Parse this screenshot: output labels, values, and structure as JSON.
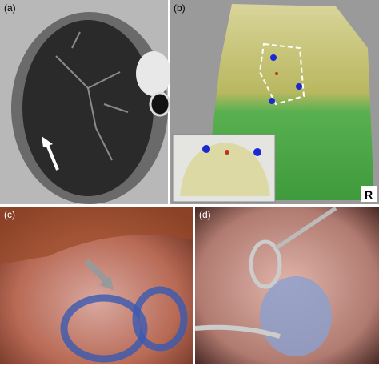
{
  "panels": [
    {
      "label": "(a)"
    },
    {
      "label": "(b)",
      "marker": "R"
    },
    {
      "label": "(c)"
    },
    {
      "label": "(d)"
    }
  ]
}
